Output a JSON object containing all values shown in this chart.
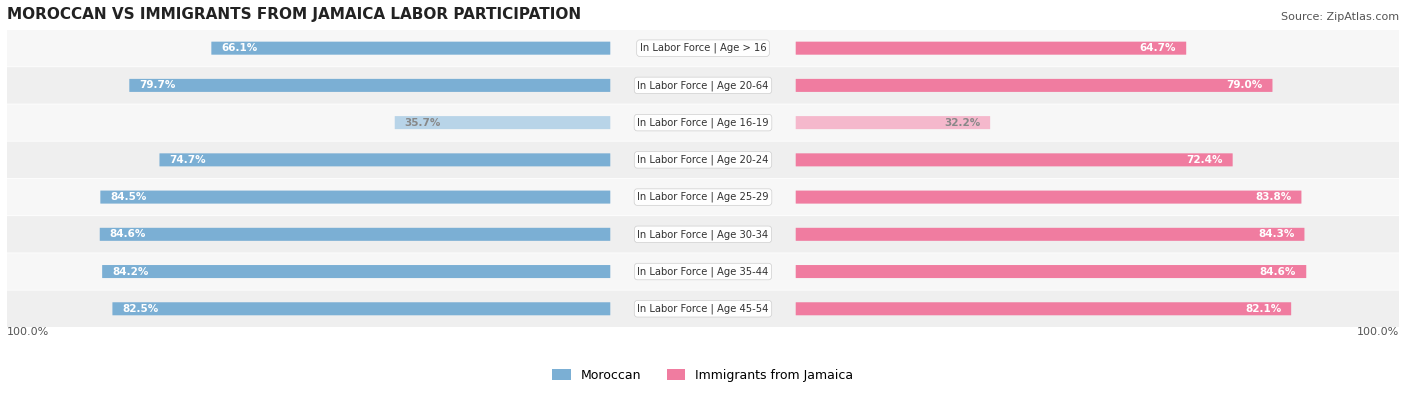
{
  "title": "MOROCCAN VS IMMIGRANTS FROM JAMAICA LABOR PARTICIPATION",
  "source": "Source: ZipAtlas.com",
  "categories": [
    "In Labor Force | Age > 16",
    "In Labor Force | Age 20-64",
    "In Labor Force | Age 16-19",
    "In Labor Force | Age 20-24",
    "In Labor Force | Age 25-29",
    "In Labor Force | Age 30-34",
    "In Labor Force | Age 35-44",
    "In Labor Force | Age 45-54"
  ],
  "moroccan_values": [
    66.1,
    79.7,
    35.7,
    74.7,
    84.5,
    84.6,
    84.2,
    82.5
  ],
  "jamaica_values": [
    64.7,
    79.0,
    32.2,
    72.4,
    83.8,
    84.3,
    84.6,
    82.1
  ],
  "moroccan_color": "#7bafd4",
  "moroccan_light_color": "#b8d4e8",
  "jamaica_color": "#f07ca0",
  "jamaica_light_color": "#f5b8cc",
  "bar_bg_color": "#f0f0f0",
  "row_bg_color": "#f5f5f5",
  "row_bg_alt": "#e8e8e8",
  "label_color": "#555555",
  "max_value": 100.0,
  "legend_moroccan": "Moroccan",
  "legend_jamaica": "Immigrants from Jamaica",
  "background_color": "#ffffff"
}
